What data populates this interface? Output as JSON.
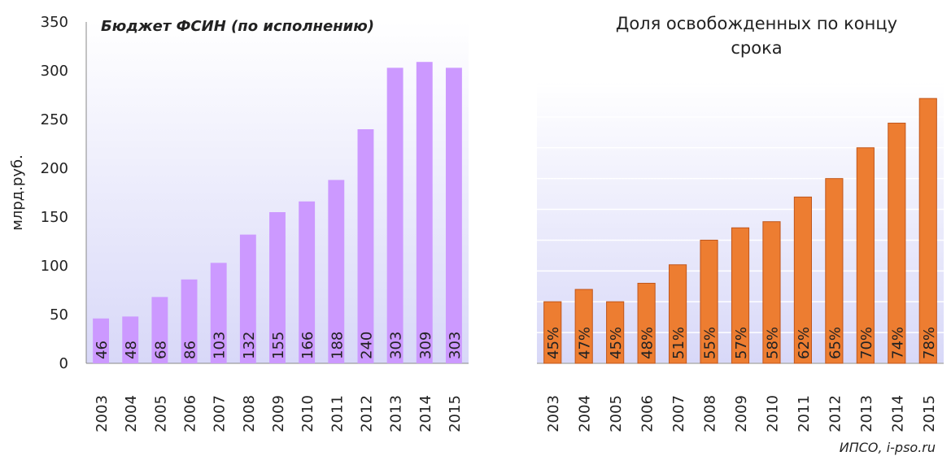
{
  "charts": {
    "chart_data": [
      {
        "type": "bar",
        "title": "Бюджет ФСИН (по исполнению)",
        "y_label": "млрд.руб.",
        "categories": [
          "2003",
          "2004",
          "2005",
          "2006",
          "2007",
          "2008",
          "2009",
          "2010",
          "2011",
          "2012",
          "2013",
          "2014",
          "2015"
        ],
        "values": [
          46,
          48,
          68,
          86,
          103,
          132,
          155,
          166,
          188,
          240,
          303,
          309,
          303
        ],
        "color": "#cc99ff",
        "ylim": [
          0,
          350
        ],
        "yticks": [
          0,
          50,
          100,
          150,
          200,
          250,
          300,
          350
        ],
        "grid": false,
        "ytick_labels": true
      },
      {
        "type": "bar",
        "title": "Доля освобожденных по концу срока",
        "categories": [
          "2003",
          "2004",
          "2005",
          "2006",
          "2007",
          "2008",
          "2009",
          "2010",
          "2011",
          "2012",
          "2013",
          "2014",
          "2015"
        ],
        "values": [
          45,
          47,
          45,
          48,
          51,
          55,
          57,
          58,
          62,
          65,
          70,
          74,
          78
        ],
        "value_labels": [
          "45%",
          "47%",
          "45%",
          "48%",
          "51%",
          "55%",
          "57%",
          "58%",
          "62%",
          "65%",
          "70%",
          "74%",
          "78%"
        ],
        "color": "#ed7d31",
        "ylim": [
          35,
          80
        ],
        "yticks": [
          35,
          40,
          45,
          50,
          55,
          60,
          65,
          70,
          75,
          80
        ],
        "grid": true,
        "ytick_labels": false
      }
    ]
  },
  "footer": "ИПСО, i-pso.ru"
}
